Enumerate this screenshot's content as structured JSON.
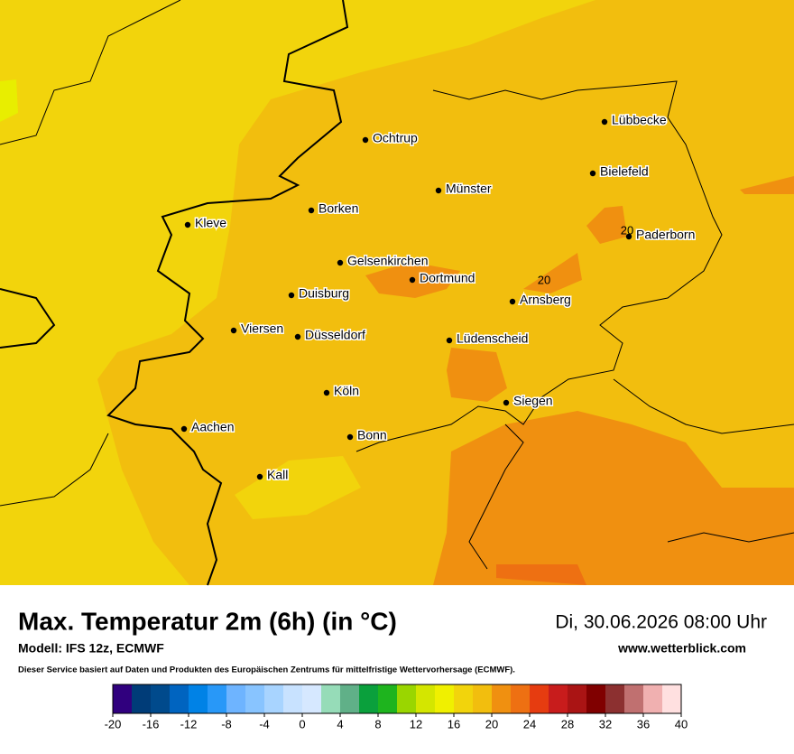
{
  "map": {
    "cities": [
      "Lübbecke",
      "Ochtrup",
      "Bielefeld",
      "Münster",
      "Borken",
      "Kleve",
      "Paderborn",
      "Gelsenkirchen",
      "Dortmund",
      "Duisburg",
      "Arnsberg",
      "Viersen",
      "Düsseldorf",
      "Lüdenscheid",
      "Köln",
      "Siegen",
      "Aachen",
      "Bonn",
      "Kall"
    ],
    "contour_labels": [
      20,
      20
    ]
  },
  "footer": {
    "title": "Max. Temperatur 2m (6h) (in °C)",
    "date": "Di, 30.06.2026 08:00 Uhr",
    "model": "Modell: IFS 12z, ECMWF",
    "website": "www.wetterblick.com",
    "disclaimer": "Dieser Service basiert auf Daten und Produkten des Europäischen Zentrums für mittelfristige Wettervorhersage (ECMWF).",
    "colorbar": {
      "range": [
        -20,
        40
      ],
      "ticks": [
        -20,
        -16,
        -12,
        -8,
        -4,
        0,
        4,
        8,
        12,
        16,
        20,
        24,
        28,
        32,
        36,
        40
      ],
      "colors": [
        "#30007e",
        "#003c78",
        "#004a8c",
        "#0064c0",
        "#0082e6",
        "#2898f8",
        "#6eb4ff",
        "#88c4ff",
        "#a8d4ff",
        "#c8e2ff",
        "#d6e8ff",
        "#96dcb8",
        "#60b088",
        "#0aa03c",
        "#1eb41e",
        "#9ad600",
        "#d4e600",
        "#f0f000",
        "#f2d40c",
        "#f2be0e",
        "#f09010",
        "#ee7012",
        "#e63c10",
        "#c81c1c",
        "#aa1414",
        "#800000",
        "#8c3030",
        "#c07070",
        "#f0b0b0",
        "#ffe0e0"
      ]
    }
  }
}
